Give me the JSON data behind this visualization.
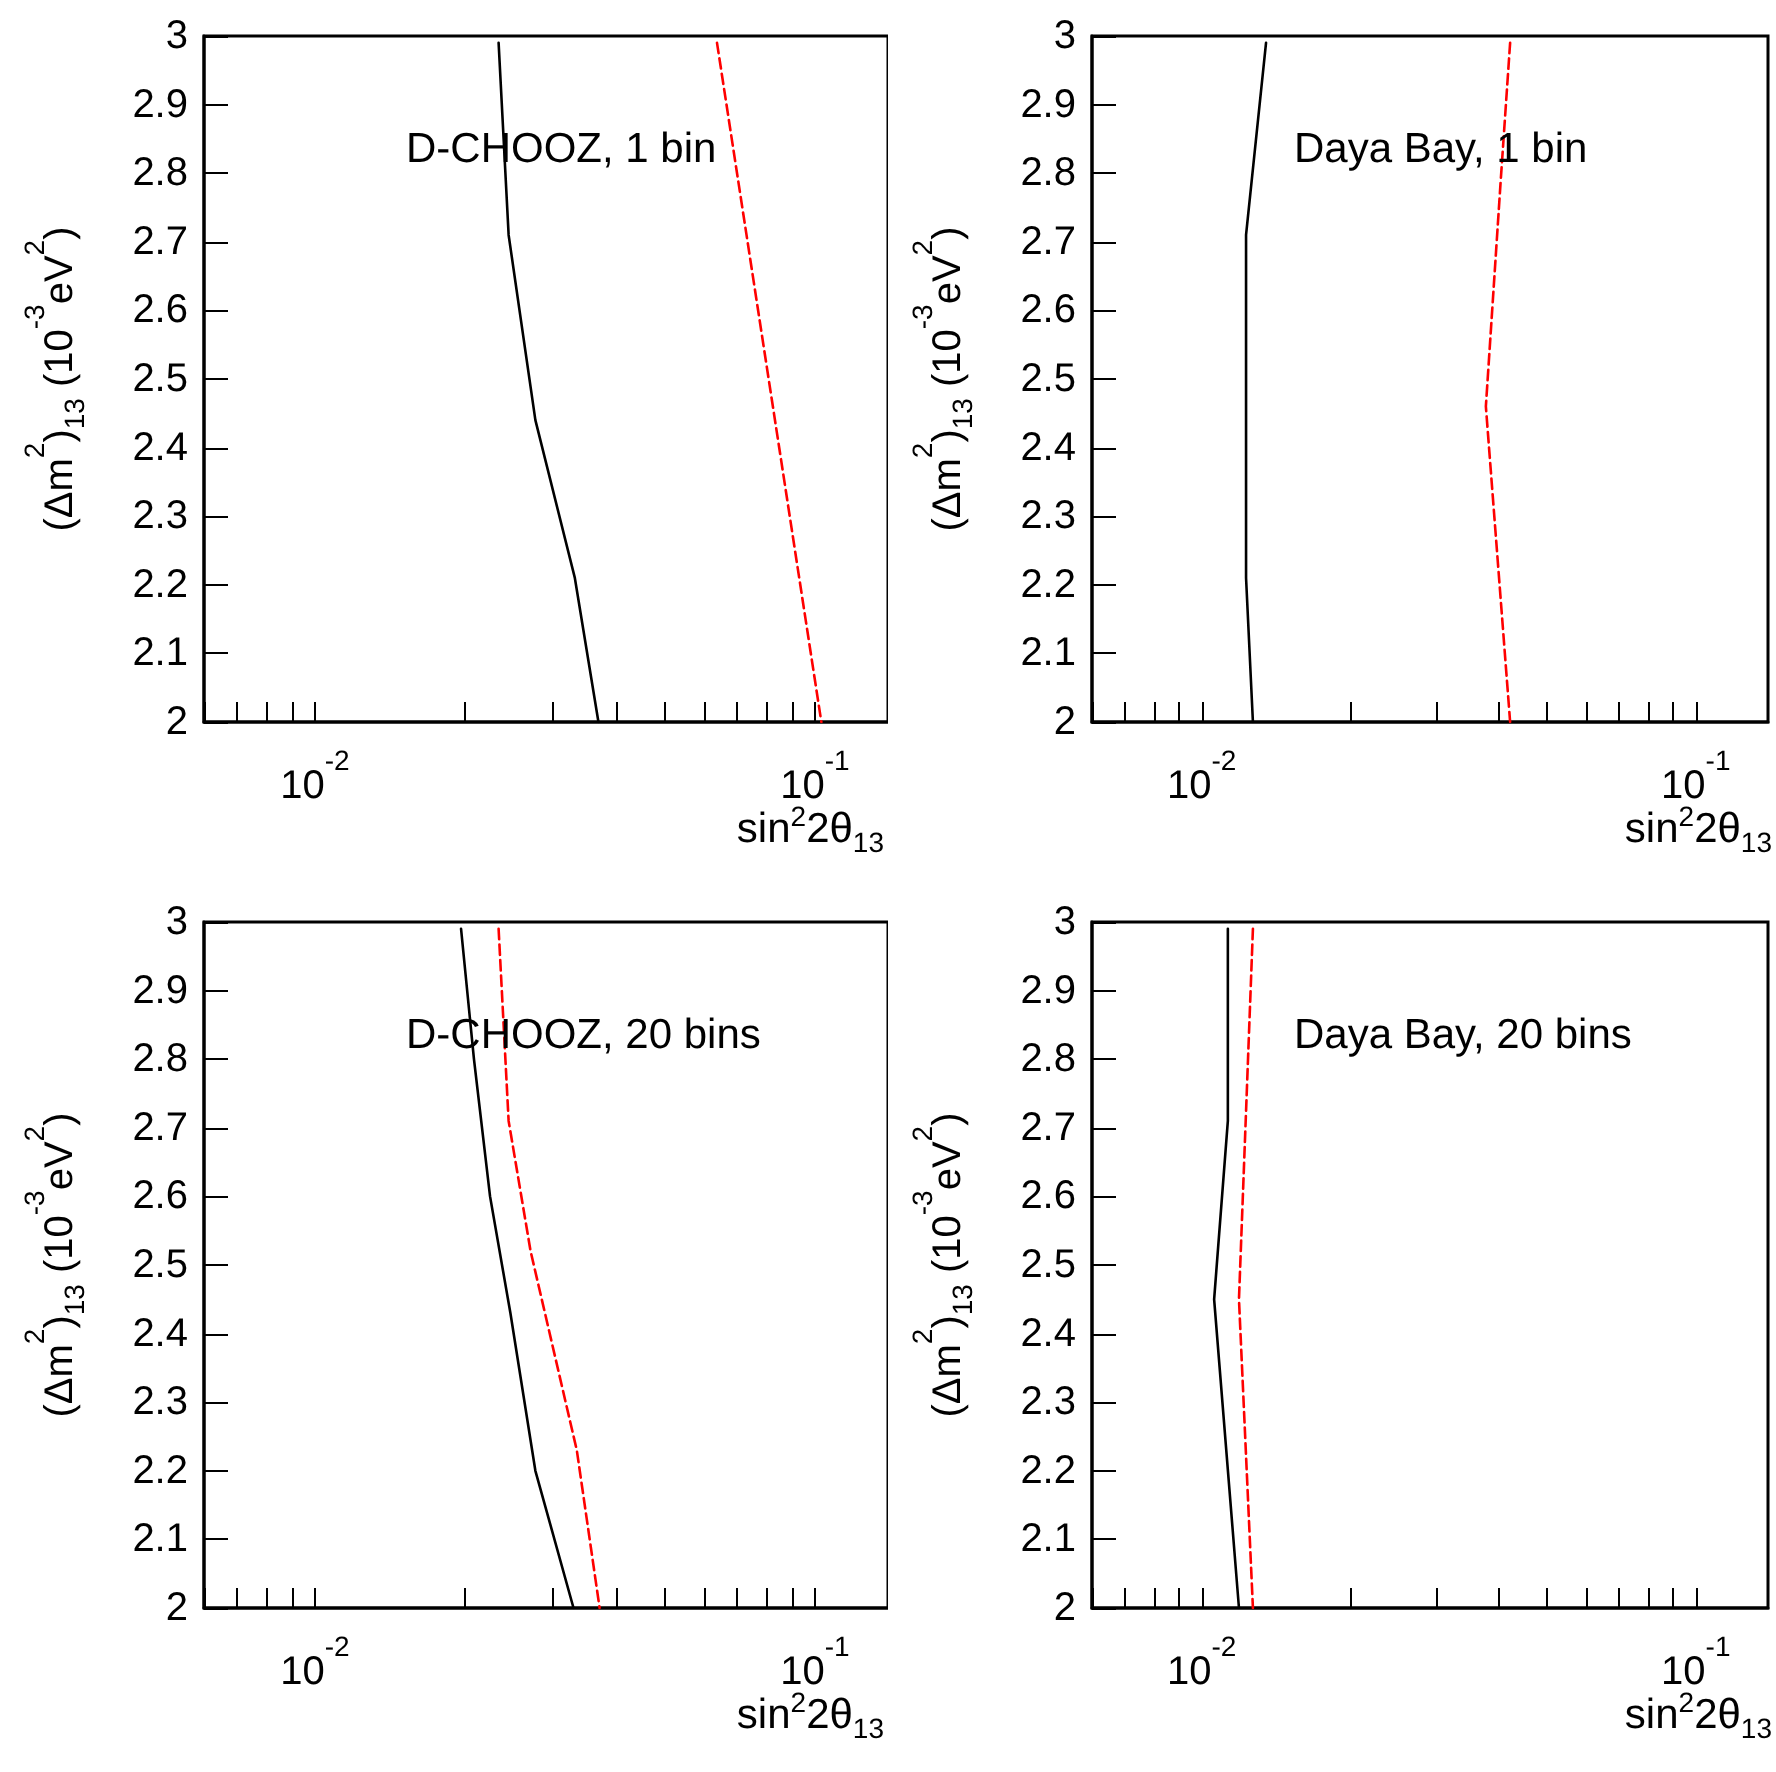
{
  "chart_data": [
    {
      "type": "line",
      "xlabel": "sin$^{2}$2θ$_{13}$",
      "ylabel": "(Δm$^{2}$)$_{13}$ (10$^{-3}$eV$^{2}$)",
      "log": "x",
      "marker": "none",
      "annotations": [
        "D-CHOOZ, 1 bin"
      ],
      "xlim": [
        0.006,
        0.14
      ],
      "ylim": [
        2,
        3
      ],
      "xticks": [
        {
          "value": 0.006,
          "label": null
        },
        {
          "value": 0.007,
          "label": null
        },
        {
          "value": 0.008,
          "label": null
        },
        {
          "value": 0.009,
          "label": null
        },
        {
          "value": 0.01,
          "label": "10$^{-2}$"
        },
        {
          "value": 0.02,
          "label": null
        },
        {
          "value": 0.03,
          "label": null
        },
        {
          "value": 0.04,
          "label": null
        },
        {
          "value": 0.05,
          "label": null
        },
        {
          "value": 0.06,
          "label": null
        },
        {
          "value": 0.07,
          "label": null
        },
        {
          "value": 0.08,
          "label": null
        },
        {
          "value": 0.09,
          "label": null
        },
        {
          "value": 0.1,
          "label": "10$^{-1}$"
        }
      ],
      "yticks": [
        2,
        2.1,
        2.2,
        2.3,
        2.4,
        2.5,
        2.6,
        2.7,
        2.8,
        2.9,
        3
      ],
      "series": [
        {
          "color": "#000000",
          "line_style": "solid",
          "x": [
            0.0233,
            0.0244,
            0.0276,
            0.0331,
            0.0369
          ],
          "values": [
            2.99,
            2.71,
            2.44,
            2.21,
            2.0
          ]
        },
        {
          "color": "#ff0000",
          "line_style": "dashed",
          "x": [
            0.0637,
            0.103
          ],
          "values": [
            2.99,
            2.0
          ]
        }
      ]
    },
    {
      "type": "line",
      "xlabel": "sin$^{2}$2θ$_{13}$",
      "ylabel": "(Δm$^{2}$)$_{13}$ (10$^{-3}$eV$^{2}$)",
      "log": "x",
      "marker": "none",
      "annotations": [
        "Daya Bay, 1 bin"
      ],
      "xlim": [
        0.006,
        0.14
      ],
      "ylim": [
        2,
        3
      ],
      "xticks": [
        {
          "value": 0.006,
          "label": null
        },
        {
          "value": 0.007,
          "label": null
        },
        {
          "value": 0.008,
          "label": null
        },
        {
          "value": 0.009,
          "label": null
        },
        {
          "value": 0.01,
          "label": "10$^{-2}$"
        },
        {
          "value": 0.02,
          "label": null
        },
        {
          "value": 0.03,
          "label": null
        },
        {
          "value": 0.04,
          "label": null
        },
        {
          "value": 0.05,
          "label": null
        },
        {
          "value": 0.06,
          "label": null
        },
        {
          "value": 0.07,
          "label": null
        },
        {
          "value": 0.08,
          "label": null
        },
        {
          "value": 0.09,
          "label": null
        },
        {
          "value": 0.1,
          "label": "10$^{-1}$"
        }
      ],
      "yticks": [
        2,
        2.1,
        2.2,
        2.3,
        2.4,
        2.5,
        2.6,
        2.7,
        2.8,
        2.9,
        3
      ],
      "series": [
        {
          "color": "#000000",
          "line_style": "solid",
          "x": [
            0.0135,
            0.0123,
            0.0123,
            0.0127
          ],
          "values": [
            2.99,
            2.71,
            2.21,
            2.0
          ]
        },
        {
          "color": "#ff0000",
          "line_style": "dashed",
          "x": [
            0.0421,
            0.0403,
            0.0376,
            0.0421
          ],
          "values": [
            2.99,
            2.79,
            2.46,
            2.0
          ]
        }
      ]
    },
    {
      "type": "line",
      "xlabel": "sin$^{2}$2θ$_{13}$",
      "ylabel": "(Δm$^{2}$)$_{13}$ (10$^{-3}$eV$^{2}$)",
      "log": "x",
      "marker": "none",
      "annotations": [
        "D-CHOOZ, 20 bins"
      ],
      "xlim": [
        0.006,
        0.14
      ],
      "ylim": [
        2,
        3
      ],
      "xticks": [
        {
          "value": 0.006,
          "label": null
        },
        {
          "value": 0.007,
          "label": null
        },
        {
          "value": 0.008,
          "label": null
        },
        {
          "value": 0.009,
          "label": null
        },
        {
          "value": 0.01,
          "label": "10$^{-2}$"
        },
        {
          "value": 0.02,
          "label": null
        },
        {
          "value": 0.03,
          "label": null
        },
        {
          "value": 0.04,
          "label": null
        },
        {
          "value": 0.05,
          "label": null
        },
        {
          "value": 0.06,
          "label": null
        },
        {
          "value": 0.07,
          "label": null
        },
        {
          "value": 0.08,
          "label": null
        },
        {
          "value": 0.09,
          "label": null
        },
        {
          "value": 0.1,
          "label": "10$^{-1}$"
        }
      ],
      "yticks": [
        2,
        2.1,
        2.2,
        2.3,
        2.4,
        2.5,
        2.6,
        2.7,
        2.8,
        2.9,
        3
      ],
      "series": [
        {
          "color": "#000000",
          "line_style": "solid",
          "x": [
            0.0196,
            0.0208,
            0.0224,
            0.0246,
            0.0276,
            0.0329
          ],
          "values": [
            2.99,
            2.8,
            2.6,
            2.43,
            2.2,
            2.0
          ]
        },
        {
          "color": "#ff0000",
          "line_style": "dashed",
          "x": [
            0.0233,
            0.0244,
            0.027,
            0.0334,
            0.0371
          ],
          "values": [
            2.99,
            2.71,
            2.52,
            2.23,
            2.0
          ]
        }
      ]
    },
    {
      "type": "line",
      "xlabel": "sin$^{2}$2θ$_{13}$",
      "ylabel": "(Δm$^{2}$)$_{13}$ (10$^{-3}$eV$^{2}$)",
      "log": "x",
      "marker": "none",
      "annotations": [
        "Daya Bay, 20 bins"
      ],
      "xlim": [
        0.006,
        0.14
      ],
      "ylim": [
        2,
        3
      ],
      "xticks": [
        {
          "value": 0.006,
          "label": null
        },
        {
          "value": 0.007,
          "label": null
        },
        {
          "value": 0.008,
          "label": null
        },
        {
          "value": 0.009,
          "label": null
        },
        {
          "value": 0.01,
          "label": "10$^{-2}$"
        },
        {
          "value": 0.02,
          "label": null
        },
        {
          "value": 0.03,
          "label": null
        },
        {
          "value": 0.04,
          "label": null
        },
        {
          "value": 0.05,
          "label": null
        },
        {
          "value": 0.06,
          "label": null
        },
        {
          "value": 0.07,
          "label": null
        },
        {
          "value": 0.08,
          "label": null
        },
        {
          "value": 0.09,
          "label": null
        },
        {
          "value": 0.1,
          "label": "10$^{-1}$"
        }
      ],
      "yticks": [
        2,
        2.1,
        2.2,
        2.3,
        2.4,
        2.5,
        2.6,
        2.7,
        2.8,
        2.9,
        3
      ],
      "series": [
        {
          "color": "#000000",
          "line_style": "solid",
          "x": [
            0.0113,
            0.0113,
            0.0106,
            0.0119
          ],
          "values": [
            2.99,
            2.71,
            2.45,
            2.0
          ]
        },
        {
          "color": "#ff0000",
          "line_style": "dashed",
          "x": [
            0.0127,
            0.0119,
            0.0127
          ],
          "values": [
            2.99,
            2.45,
            2.0
          ]
        }
      ]
    }
  ]
}
